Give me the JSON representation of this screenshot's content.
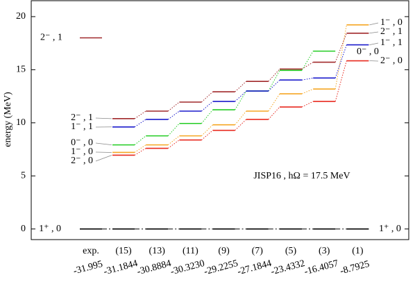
{
  "chart_data": {
    "type": "levels",
    "ylabel": "energy (MeV)",
    "annotation": "JISP16 , hΩ = 17.5 MeV",
    "ylim": [
      -1,
      21.5
    ],
    "yticks": [
      0,
      5,
      10,
      15,
      20
    ],
    "categories": [
      "exp.",
      "(15)",
      "(13)",
      "(11)",
      "(9)",
      "(7)",
      "(5)",
      "(3)",
      "(1)"
    ],
    "sublabels": [
      "-31.995",
      "-31.1844",
      "-30.8884",
      "-30.3230",
      "-29.2255",
      "-27.1844",
      "-23.4332",
      "-16.4057",
      "-8.7925"
    ],
    "series": [
      {
        "name": "1⁺ , 0",
        "color": "#000000",
        "values": [
          0,
          0,
          0,
          0,
          0,
          0,
          0,
          0,
          0
        ]
      },
      {
        "name": "2⁻ , 0",
        "color": "#e8281e",
        "values": [
          null,
          6.95,
          7.6,
          8.38,
          9.29,
          10.32,
          11.49,
          12.01,
          15.84
        ]
      },
      {
        "name": "1⁻ , 0",
        "color": "#f5a623",
        "values": [
          null,
          7.21,
          7.92,
          8.77,
          9.81,
          11.1,
          12.73,
          13.18,
          19.22
        ]
      },
      {
        "name": "0⁻ , 0",
        "color": "#22cc22",
        "values": [
          null,
          7.92,
          8.77,
          9.94,
          11.23,
          12.99,
          14.94,
          16.75,
          null
        ]
      },
      {
        "name": "1⁻ , 1",
        "color": "#1a1acc",
        "values": [
          null,
          9.61,
          10.32,
          11.1,
          12.01,
          12.99,
          14.03,
          14.22,
          17.34
        ]
      },
      {
        "name": "2⁻ , 1",
        "color": "#a0282a",
        "values": [
          18.0,
          10.39,
          11.1,
          11.95,
          12.92,
          13.9,
          15.06,
          15.71,
          18.44
        ]
      }
    ]
  }
}
